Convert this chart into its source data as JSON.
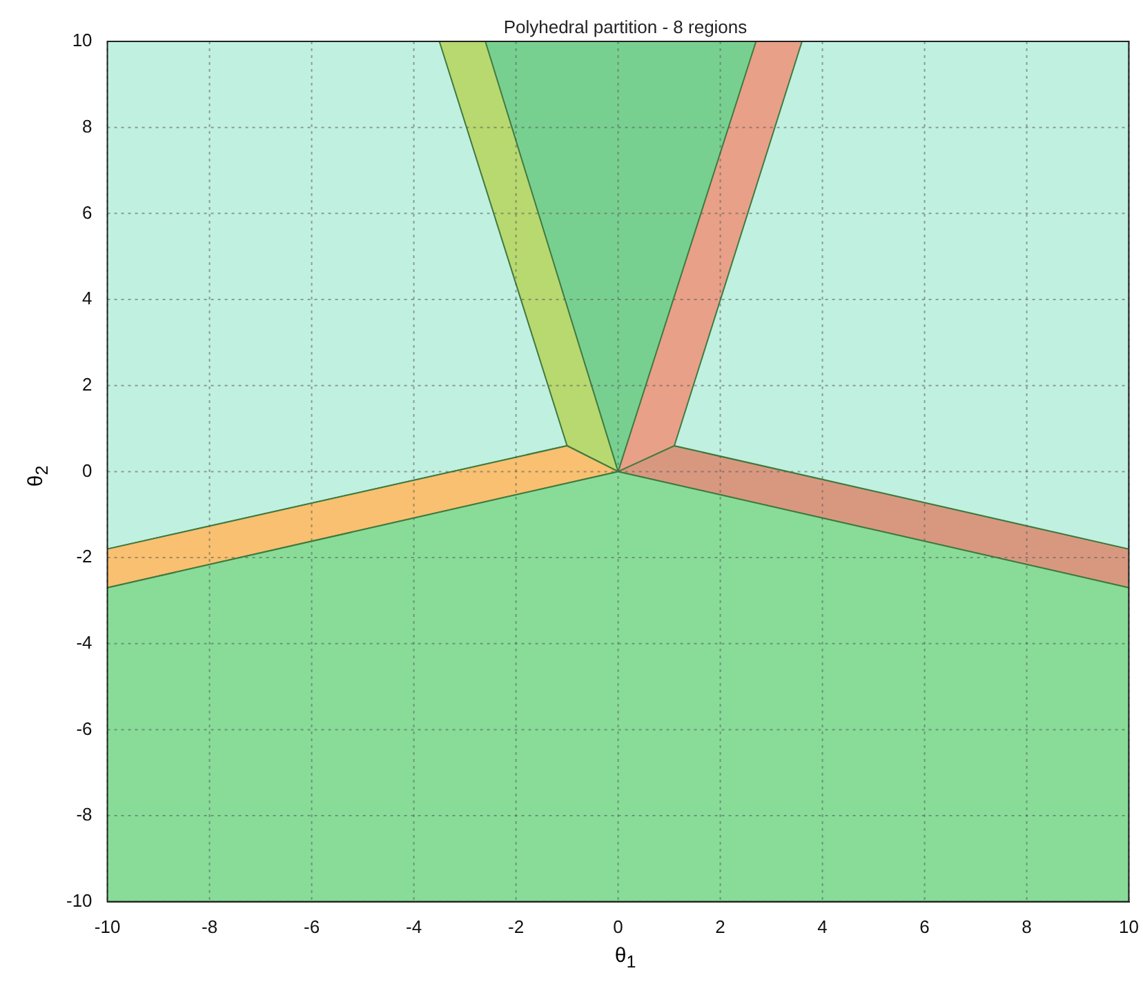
{
  "chart_data": {
    "type": "area",
    "title": "Polyhedral partition - 8 regions",
    "xlabel": "θ$_{1}$",
    "ylabel": "θ$_{2}$",
    "xlim": [
      -10,
      10
    ],
    "ylim": [
      -10,
      10
    ],
    "xticks": [
      -10,
      -8,
      -6,
      -4,
      -2,
      0,
      2,
      4,
      6,
      8,
      10
    ],
    "yticks": [
      -10,
      -8,
      -6,
      -4,
      -2,
      0,
      2,
      4,
      6,
      8,
      10
    ],
    "grid": true,
    "legend": false,
    "series": [
      {
        "color": "#88dc98",
        "x": [
          -10,
          0,
          10,
          10,
          -10
        ],
        "values": [
          -2.7,
          0,
          -2.7,
          -10,
          -10
        ]
      },
      {
        "color": "#f8c070",
        "x": [
          -10,
          -1,
          0,
          -10
        ],
        "values": [
          -1.8,
          0.6,
          0,
          -2.7
        ]
      },
      {
        "color": "#c0f0e0",
        "x": [
          -10,
          -3.5,
          -1,
          -10
        ],
        "values": [
          10,
          10,
          0.6,
          -1.8
        ]
      },
      {
        "color": "#b8d870",
        "x": [
          -3.5,
          -2.6,
          0,
          -1
        ],
        "values": [
          10,
          10,
          0,
          0.6
        ]
      },
      {
        "color": "#78d090",
        "x": [
          -2.6,
          2.7,
          0
        ],
        "values": [
          10,
          10,
          0
        ]
      },
      {
        "color": "#e8a088",
        "x": [
          2.7,
          3.6,
          1.1,
          0
        ],
        "values": [
          10,
          10,
          0.6,
          0
        ]
      },
      {
        "color": "#c0f0e0",
        "x": [
          3.6,
          10,
          10,
          1.1
        ],
        "values": [
          10,
          10,
          -1.8,
          0.6
        ]
      },
      {
        "color": "#d89880",
        "x": [
          1.1,
          10,
          10,
          0
        ],
        "values": [
          0.6,
          -1.8,
          -2.7,
          0
        ]
      }
    ]
  }
}
